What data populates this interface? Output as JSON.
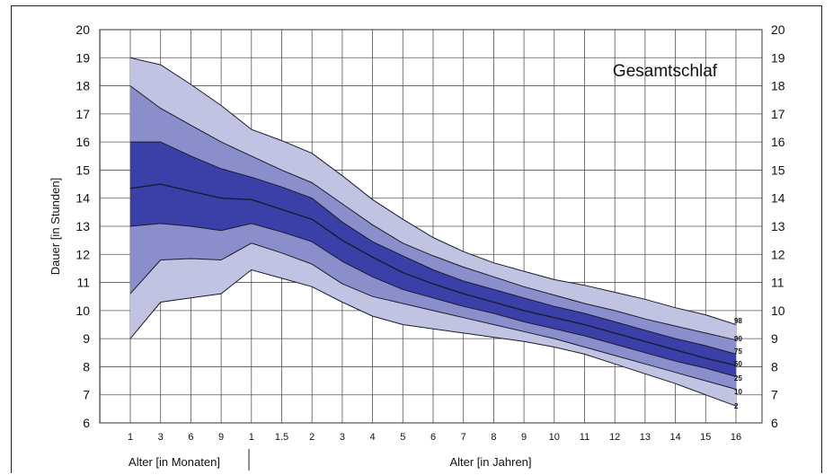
{
  "chart_data": {
    "type": "area",
    "title": "Gesamtschlaf",
    "ylabel": "Dauer [in Stunden]",
    "xlabel_months": "Alter [in Monaten]",
    "xlabel_years": "Alter [in Jahren]",
    "ylim": [
      6,
      20
    ],
    "yticks": [
      "6",
      "7",
      "8",
      "9",
      "10",
      "11",
      "12",
      "13",
      "14",
      "15",
      "16",
      "17",
      "18",
      "19",
      "20"
    ],
    "categories": [
      "1",
      "3",
      "6",
      "9",
      "1",
      "1.5",
      "2",
      "3",
      "4",
      "5",
      "6",
      "7",
      "8",
      "9",
      "10",
      "11",
      "12",
      "13",
      "14",
      "15",
      "16"
    ],
    "grid": true,
    "series": [
      {
        "name": "98",
        "values": [
          19.0,
          18.75,
          18.05,
          17.3,
          16.45,
          16.05,
          15.6,
          14.8,
          13.95,
          13.25,
          12.6,
          12.1,
          11.7,
          11.4,
          11.1,
          10.9,
          10.65,
          10.4,
          10.1,
          9.85,
          9.5
        ]
      },
      {
        "name": "90",
        "values": [
          18.0,
          17.2,
          16.6,
          16.0,
          15.5,
          15.0,
          14.55,
          13.8,
          13.05,
          12.4,
          11.95,
          11.55,
          11.2,
          10.85,
          10.55,
          10.25,
          10.0,
          9.7,
          9.45,
          9.2,
          8.95
        ]
      },
      {
        "name": "75",
        "values": [
          16.0,
          16.0,
          15.5,
          15.05,
          14.75,
          14.4,
          14.0,
          13.15,
          12.45,
          11.95,
          11.45,
          11.05,
          10.75,
          10.45,
          10.15,
          9.9,
          9.6,
          9.3,
          9.0,
          8.75,
          8.45
        ]
      },
      {
        "name": "50",
        "values": [
          14.35,
          14.5,
          14.25,
          14.0,
          13.95,
          13.6,
          13.25,
          12.5,
          11.9,
          11.35,
          10.95,
          10.6,
          10.3,
          10.0,
          9.75,
          9.5,
          9.2,
          8.9,
          8.6,
          8.3,
          8.05
        ]
      },
      {
        "name": "25",
        "values": [
          13.0,
          13.1,
          13.0,
          12.85,
          13.1,
          12.8,
          12.45,
          11.75,
          11.2,
          10.75,
          10.45,
          10.15,
          9.9,
          9.6,
          9.35,
          9.1,
          8.8,
          8.5,
          8.2,
          7.95,
          7.65
        ]
      },
      {
        "name": "10",
        "values": [
          10.6,
          11.8,
          11.85,
          11.8,
          12.4,
          12.05,
          11.65,
          10.95,
          10.5,
          10.25,
          10.0,
          9.75,
          9.5,
          9.25,
          9.0,
          8.7,
          8.4,
          8.1,
          7.8,
          7.5,
          7.2
        ]
      },
      {
        "name": "2",
        "values": [
          9.0,
          10.3,
          10.45,
          10.6,
          11.45,
          11.15,
          10.85,
          10.3,
          9.8,
          9.5,
          9.35,
          9.2,
          9.05,
          8.9,
          8.7,
          8.45,
          8.1,
          7.75,
          7.4,
          7.0,
          6.6
        ]
      }
    ],
    "band_colors": [
      "#c0c3e2",
      "#8a8fcb",
      "#3a40a8",
      "#0d24c4"
    ]
  }
}
